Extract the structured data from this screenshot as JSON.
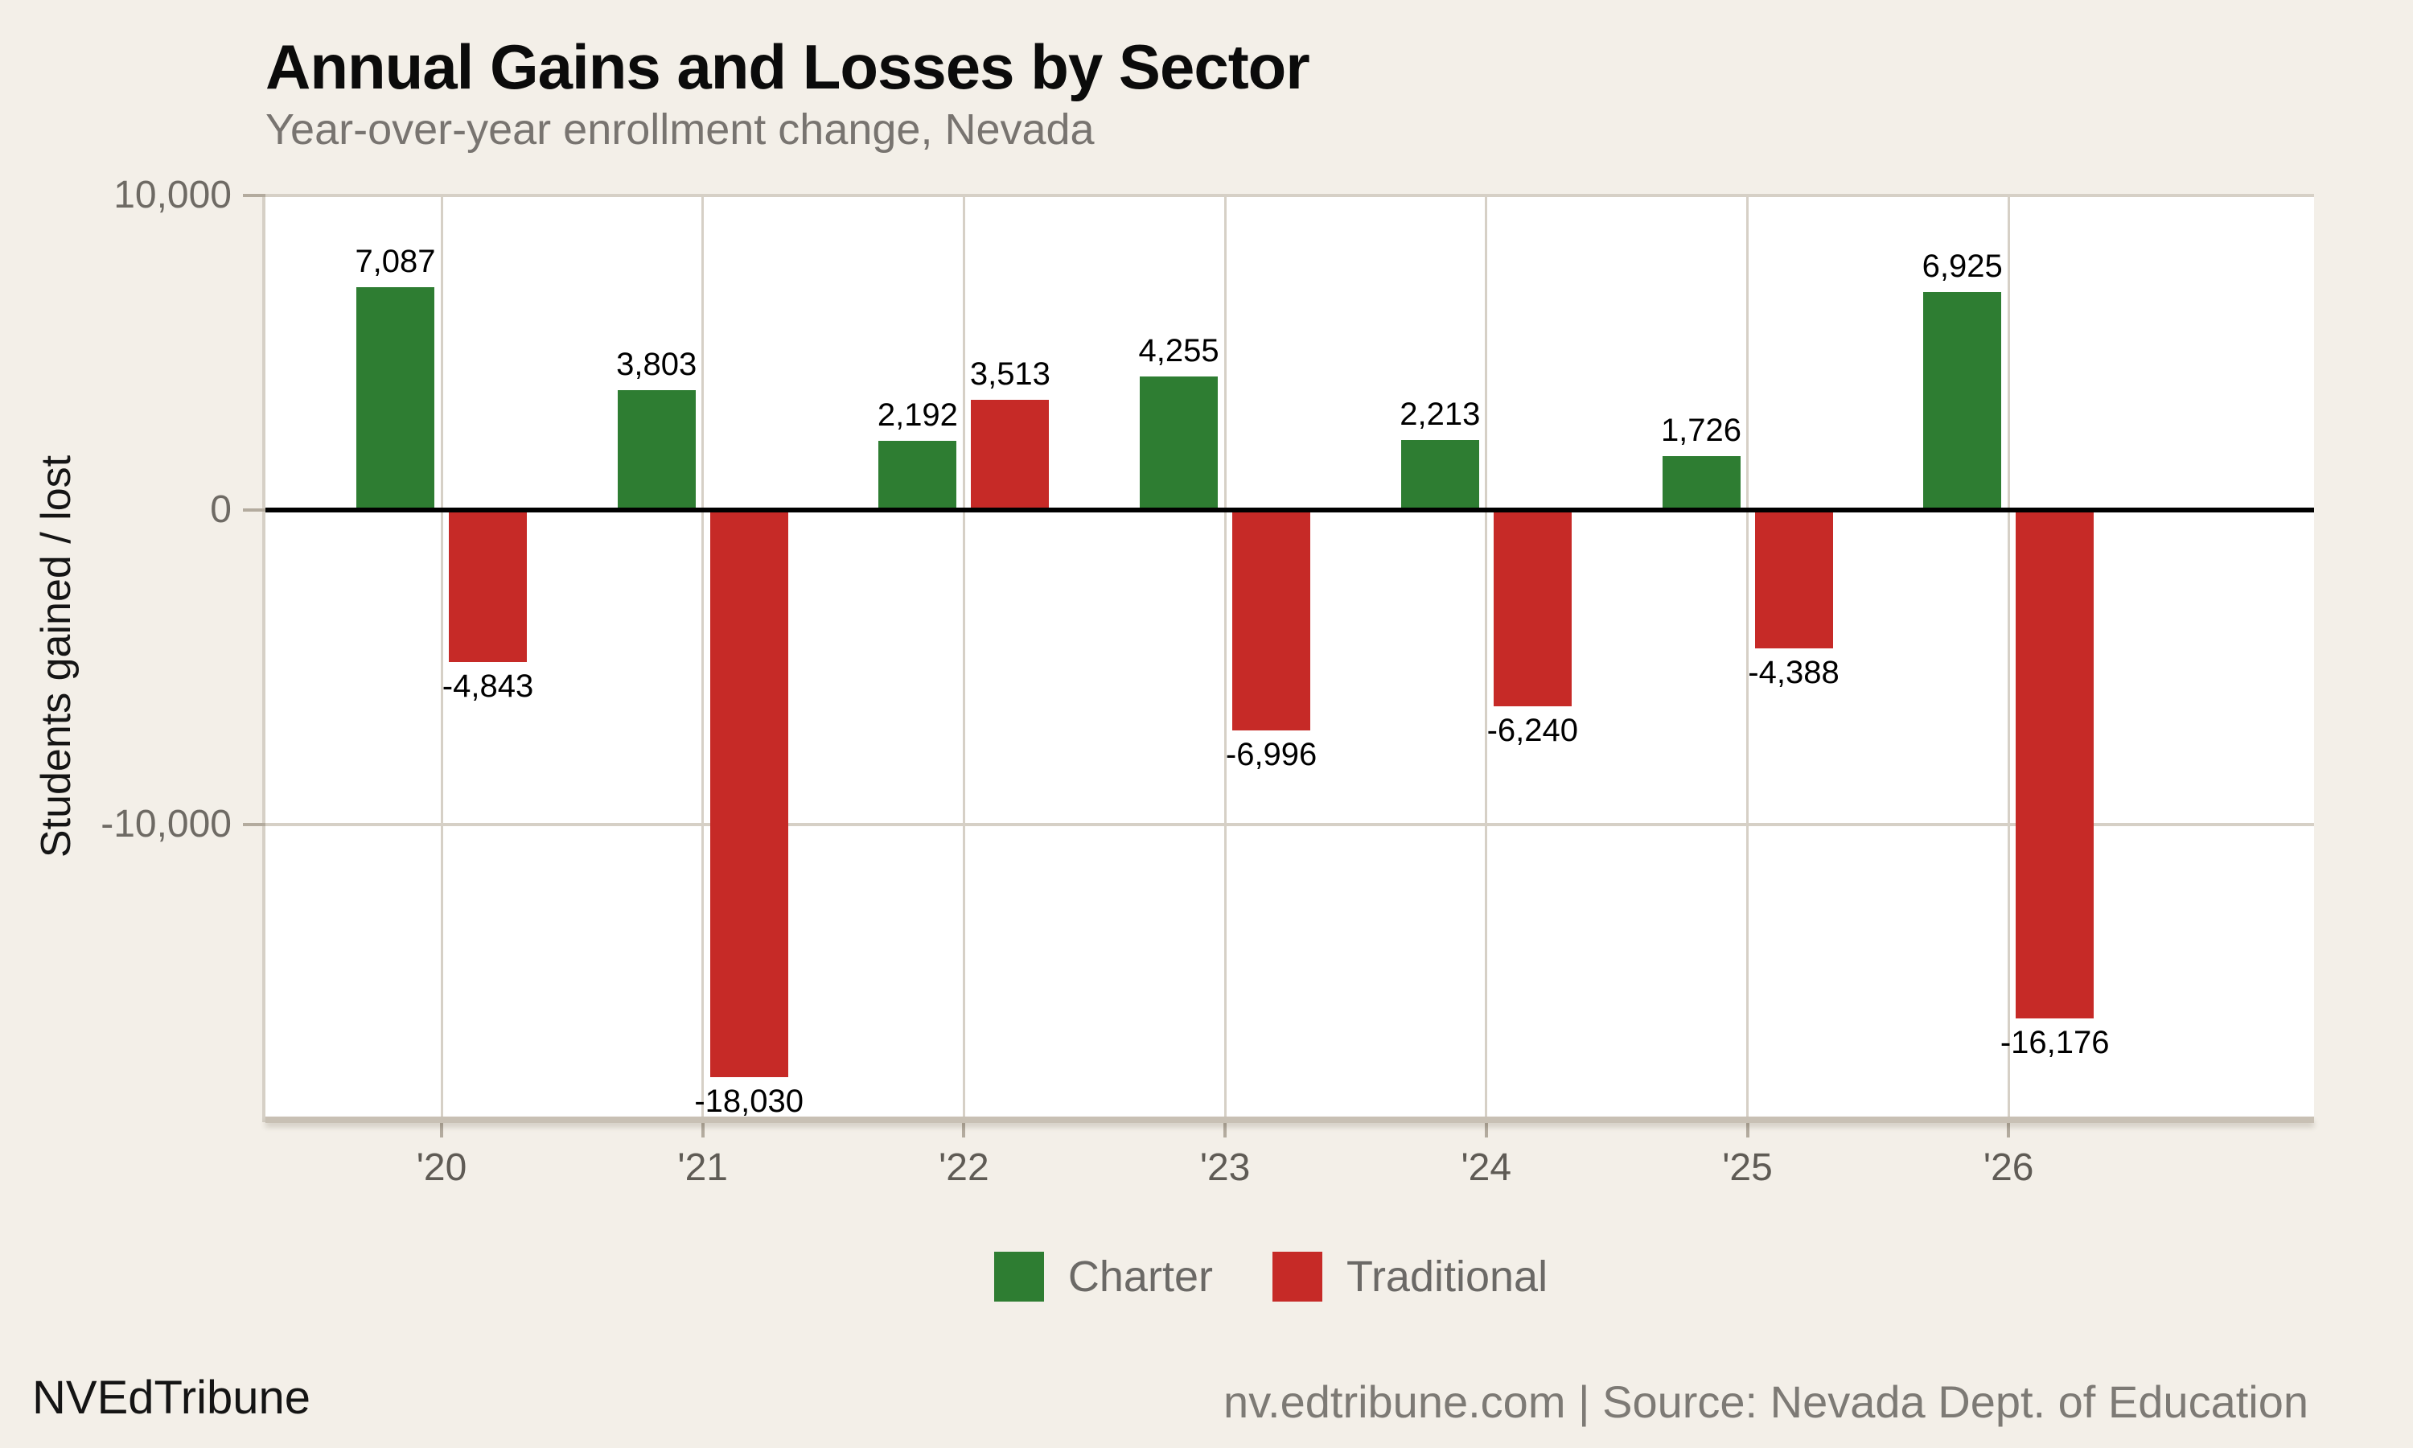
{
  "chart_data": {
    "type": "bar",
    "title": "Annual Gains and Losses by Sector",
    "subtitle": "Year-over-year enrollment change, Nevada",
    "ylabel": "Students gained / lost",
    "categories": [
      "'20",
      "'21",
      "'22",
      "'23",
      "'24",
      "'25",
      "'26"
    ],
    "series": [
      {
        "name": "Charter",
        "color": "#2e7d32",
        "values": [
          7087,
          3803,
          2192,
          4255,
          2213,
          1726,
          6925
        ]
      },
      {
        "name": "Traditional",
        "color": "#c62a27",
        "values": [
          -4843,
          -18030,
          3513,
          -6996,
          -6240,
          -4388,
          -16176
        ]
      }
    ],
    "bar_value_labels": [
      "7,087",
      "-4,843",
      "3,803",
      "-18,030",
      "2,192",
      "3,513",
      "4,255",
      "-6,996",
      "2,213",
      "-6,240",
      "1,726",
      "-4,388",
      "6,925",
      "-16,176"
    ],
    "yticks": [
      {
        "value": 10000,
        "label": "10,000"
      },
      {
        "value": 0,
        "label": "0"
      },
      {
        "value": -10000,
        "label": "-10,000"
      }
    ],
    "ylim": [
      10000,
      -19280
    ],
    "grid": "on",
    "legend_position": "bottom"
  },
  "legend": {
    "items": [
      {
        "label": "Charter",
        "color": "#2e7d32"
      },
      {
        "label": "Traditional",
        "color": "#c62a27"
      }
    ]
  },
  "footer": {
    "left": "NVEdTribune",
    "right": "nv.edtribune.com | Source: Nevada Dept. of Education"
  },
  "colors": {
    "charter_green": "#2e7d32",
    "traditional_red": "#c62a27",
    "background": "#f3efe8",
    "plot_background": "#ffffff",
    "gridline": "#d6d0c6",
    "zero_line": "#000000"
  }
}
